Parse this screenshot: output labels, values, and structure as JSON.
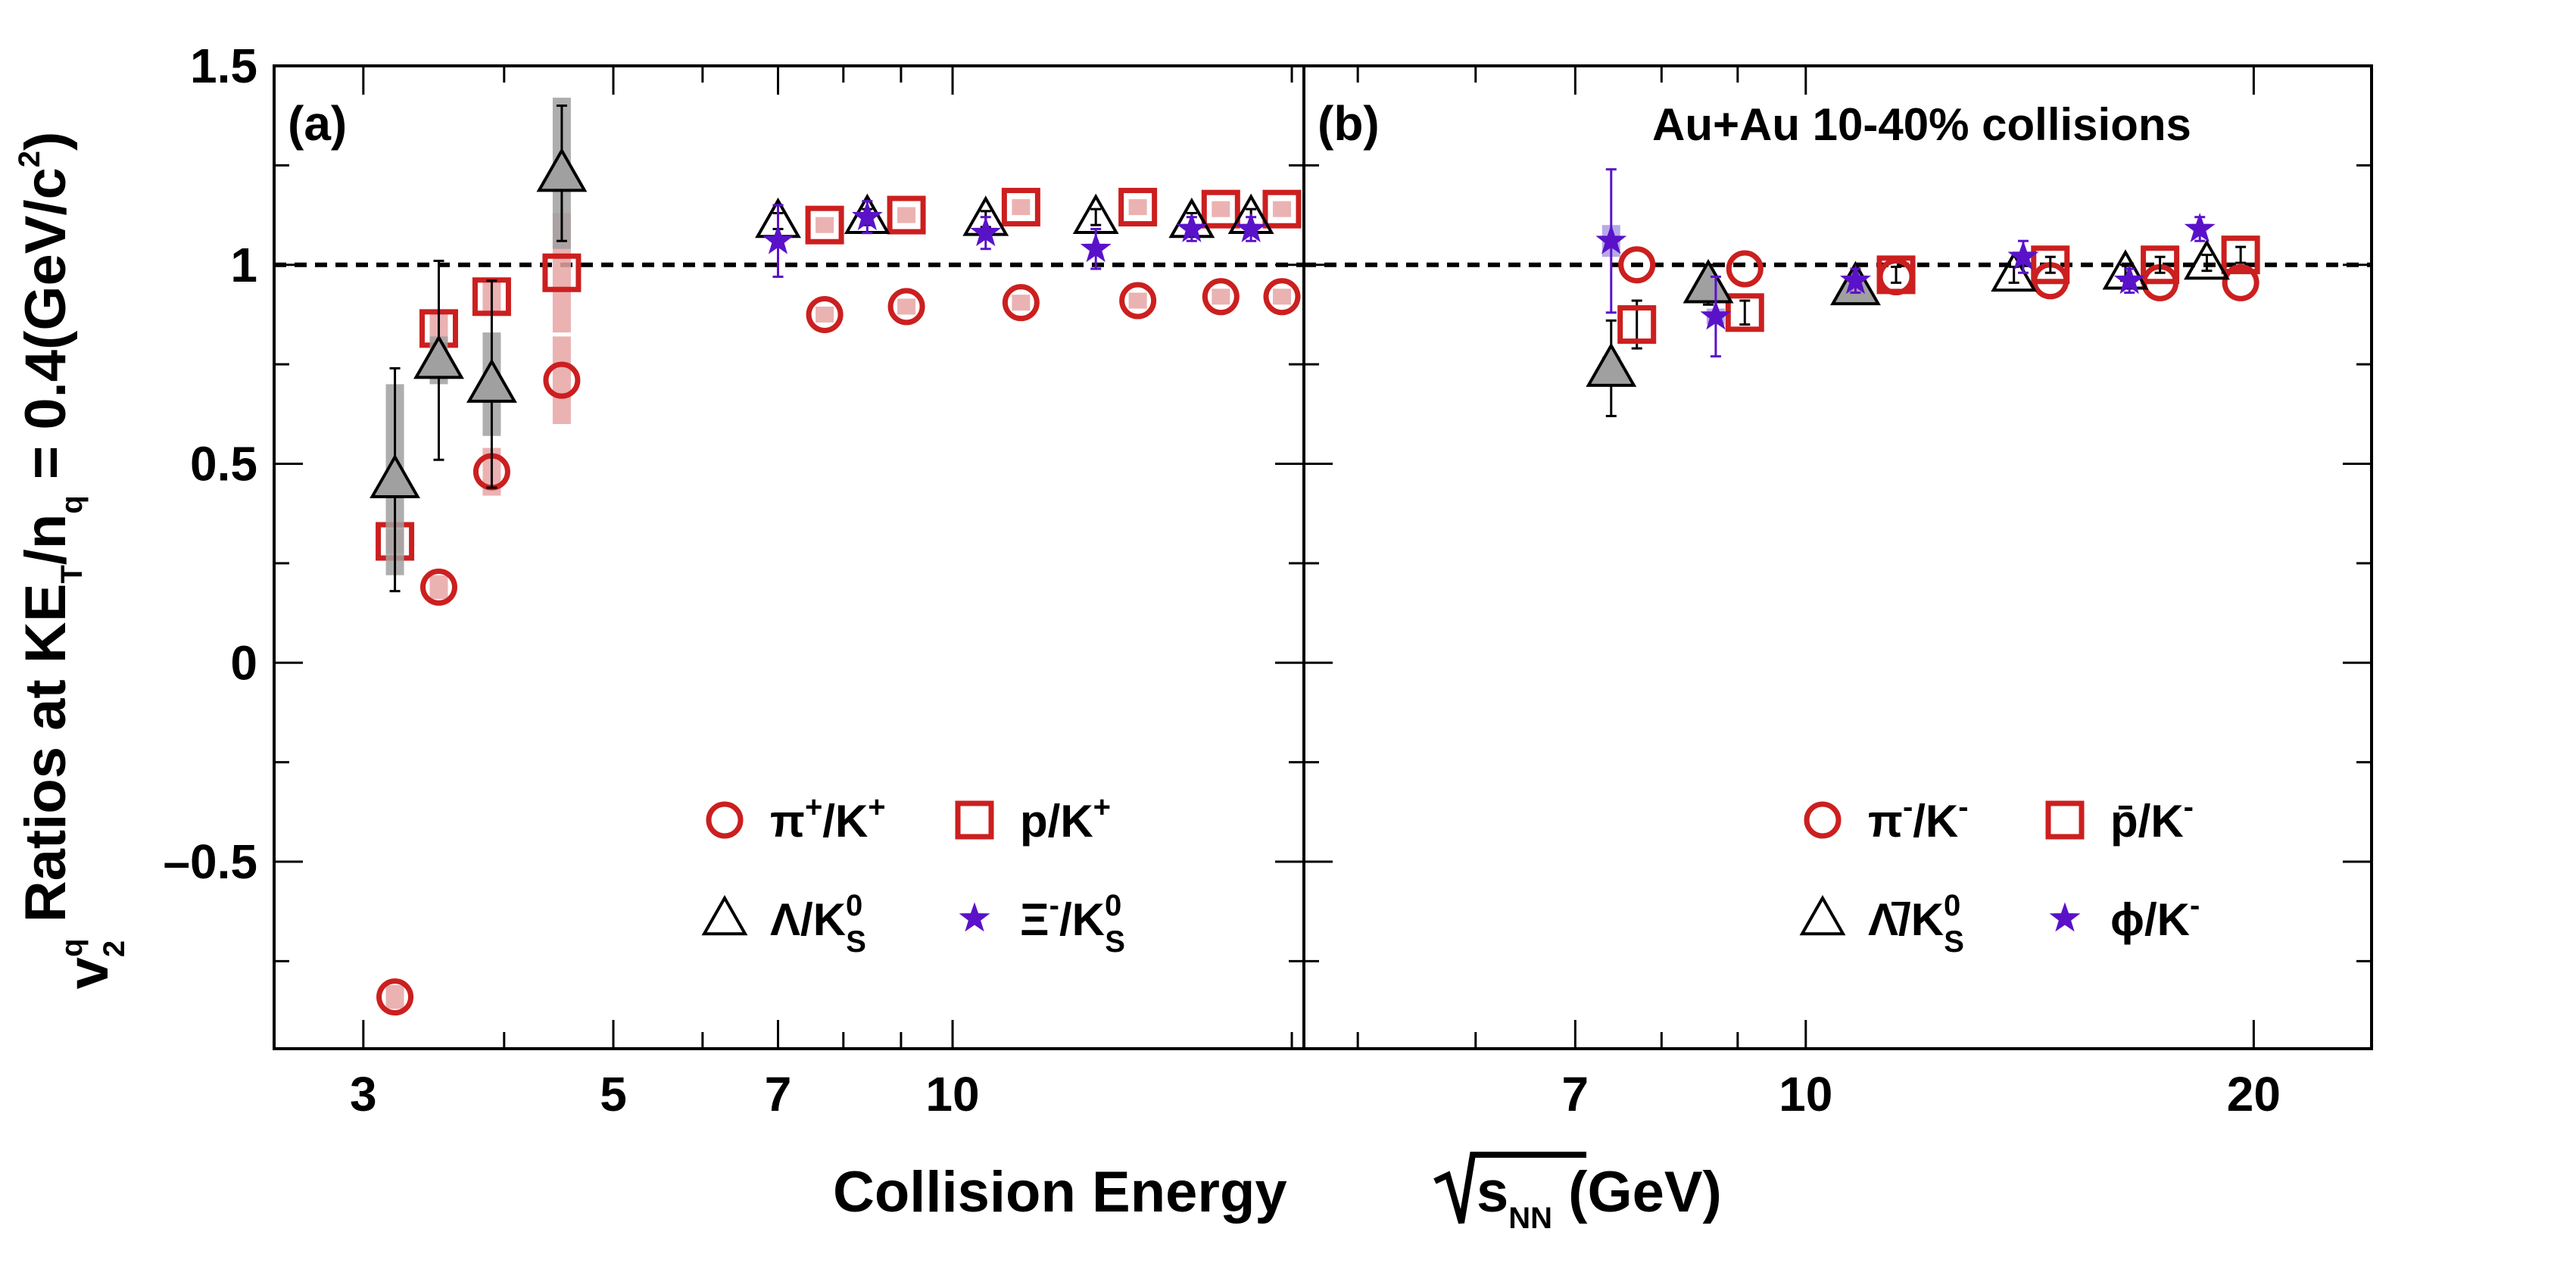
{
  "chart_data": {
    "type": "scatter",
    "y_axis": {
      "label": "v2q Ratios at KET/nq = 0.4(GeV/c2)",
      "label_parts": [
        "v",
        "2",
        "q",
        " Ratios at KE",
        "T",
        "/n",
        "q",
        " = 0.4(GeV/c",
        "2",
        ")"
      ],
      "ylim": [
        -0.97,
        1.5
      ],
      "ticks": [
        -0.5,
        0,
        0.5,
        1,
        1.5
      ],
      "tick_labels": [
        "–0.5",
        "0",
        "0.5",
        "1",
        "1.5"
      ]
    },
    "x_axis": {
      "label": "Collision Energy √sNN (GeV)",
      "label_parts": [
        "Collision Energy ",
        "s",
        "NN",
        " (GeV)"
      ],
      "scale": "log"
    },
    "reference_line": 1,
    "panels": [
      {
        "id": "a",
        "label": "(a)",
        "xlim": [
          2.5,
          20.5
        ],
        "xticks": [
          3,
          5,
          7,
          10
        ],
        "minor_xticks": [
          4,
          6,
          8,
          9,
          20
        ],
        "annotation": "",
        "legend": [
          {
            "symbol": "circle",
            "parts": [
              "π",
              "+",
              "/K",
              "+"
            ]
          },
          {
            "symbol": "square",
            "parts": [
              "p/K",
              "+"
            ]
          },
          {
            "symbol": "triangle",
            "parts": [
              "Λ/K",
              "0",
              "S"
            ]
          },
          {
            "symbol": "star",
            "parts": [
              "Ξ",
              "-",
              "/K",
              "0",
              "S"
            ]
          }
        ],
        "series": [
          {
            "name": "π+/K+",
            "symbol": "circle",
            "color": "#cc1f1f",
            "points": [
              {
                "x": 3.2,
                "y": -0.84,
                "syst": 0.03
              },
              {
                "x": 3.5,
                "y": 0.19,
                "syst": 0.03
              },
              {
                "x": 3.9,
                "y": 0.48,
                "syst": 0.06
              },
              {
                "x": 4.5,
                "y": 0.71,
                "syst": 0.11
              },
              {
                "x": 7.7,
                "y": 0.875,
                "syst": 0.02
              },
              {
                "x": 9.1,
                "y": 0.895,
                "syst": 0.02
              },
              {
                "x": 11.5,
                "y": 0.905,
                "syst": 0.02
              },
              {
                "x": 14.6,
                "y": 0.91,
                "syst": 0.02
              },
              {
                "x": 17.3,
                "y": 0.92,
                "syst": 0.02
              },
              {
                "x": 19.6,
                "y": 0.92,
                "syst": 0.02
              }
            ]
          },
          {
            "name": "p/K+",
            "symbol": "square",
            "color": "#cc1f1f",
            "points": [
              {
                "x": 3.2,
                "y": 0.305,
                "syst": 0.03
              },
              {
                "x": 3.5,
                "y": 0.84,
                "syst": 0.04
              },
              {
                "x": 3.9,
                "y": 0.92,
                "syst": 0.04
              },
              {
                "x": 4.5,
                "y": 0.98,
                "syst": 0.15
              },
              {
                "x": 7.7,
                "y": 1.1,
                "syst": 0.02
              },
              {
                "x": 9.1,
                "y": 1.125,
                "syst": 0.02
              },
              {
                "x": 11.5,
                "y": 1.145,
                "syst": 0.02
              },
              {
                "x": 14.6,
                "y": 1.145,
                "syst": 0.02
              },
              {
                "x": 17.3,
                "y": 1.14,
                "syst": 0.02
              },
              {
                "x": 19.6,
                "y": 1.14,
                "syst": 0.02
              }
            ]
          },
          {
            "name": "Λ/K0S",
            "symbol": "triangle",
            "color": "#000000",
            "points": [
              {
                "x": 3.2,
                "y": 0.46,
                "err": 0.28,
                "syst": 0.24
              },
              {
                "x": 3.5,
                "y": 0.76,
                "err": 0.25,
                "syst": 0.06
              },
              {
                "x": 3.9,
                "y": 0.7,
                "err": 0.26,
                "syst": 0.13
              },
              {
                "x": 4.5,
                "y": 1.23,
                "err": 0.17,
                "syst": 0.19
              },
              {
                "x": 7.0,
                "y": 1.11,
                "err": 0.02
              },
              {
                "x": 8.4,
                "y": 1.12,
                "err": 0.02
              },
              {
                "x": 10.7,
                "y": 1.115,
                "err": 0.02
              },
              {
                "x": 13.4,
                "y": 1.12,
                "err": 0.02
              },
              {
                "x": 16.3,
                "y": 1.11,
                "err": 0.02
              },
              {
                "x": 18.4,
                "y": 1.12,
                "err": 0.02
              }
            ]
          },
          {
            "name": "Ξ-/K0S",
            "symbol": "star",
            "color": "#5a12c9",
            "points": [
              {
                "x": 7.0,
                "y": 1.06,
                "err": 0.09
              },
              {
                "x": 8.4,
                "y": 1.12,
                "err": 0.04
              },
              {
                "x": 10.7,
                "y": 1.08,
                "err": 0.04
              },
              {
                "x": 13.4,
                "y": 1.04,
                "err": 0.05
              },
              {
                "x": 16.3,
                "y": 1.09,
                "err": 0.03
              },
              {
                "x": 18.4,
                "y": 1.09,
                "err": 0.03
              }
            ]
          }
        ]
      },
      {
        "id": "b",
        "label": "(b)",
        "xlim": [
          4.6,
          24
        ],
        "xticks": [
          7,
          10,
          20
        ],
        "minor_xticks": [
          5,
          6,
          8,
          9
        ],
        "annotation": "Au+Au 10-40% collisions",
        "legend": [
          {
            "symbol": "circle",
            "parts": [
              "π",
              "-",
              "/K",
              "-"
            ]
          },
          {
            "symbol": "square",
            "parts": [
              "p̄/K",
              "-"
            ]
          },
          {
            "symbol": "triangle",
            "parts": [
              "Λ̄/K",
              "0",
              "S"
            ]
          },
          {
            "symbol": "star",
            "parts": [
              "ϕ/K",
              "-"
            ]
          }
        ],
        "series": [
          {
            "name": "π-/K-",
            "symbol": "circle",
            "color": "#cc1f1f",
            "points": [
              {
                "x": 7.7,
                "y": 1.0
              },
              {
                "x": 9.1,
                "y": 0.99
              },
              {
                "x": 11.5,
                "y": 0.97
              },
              {
                "x": 14.6,
                "y": 0.96
              },
              {
                "x": 17.3,
                "y": 0.955
              },
              {
                "x": 19.6,
                "y": 0.955
              }
            ]
          },
          {
            "name": "p̄/K-",
            "symbol": "square",
            "color": "#cc1f1f",
            "points": [
              {
                "x": 7.7,
                "y": 0.85,
                "err": 0.06
              },
              {
                "x": 9.1,
                "y": 0.88,
                "err": 0.03
              },
              {
                "x": 11.5,
                "y": 0.975,
                "err": 0.02
              },
              {
                "x": 14.6,
                "y": 1.0,
                "err": 0.02
              },
              {
                "x": 17.3,
                "y": 1.0,
                "err": 0.02
              },
              {
                "x": 19.6,
                "y": 1.025,
                "err": 0.02
              }
            ]
          },
          {
            "name": "Λ̄/K0S",
            "symbol": "triangle",
            "color": "#000000",
            "points": [
              {
                "x": 7.4,
                "y": 0.74,
                "err": 0.12,
                "syst": 0.03
              },
              {
                "x": 8.6,
                "y": 0.95,
                "err": 0.05
              },
              {
                "x": 10.8,
                "y": 0.945,
                "err": 0.02
              },
              {
                "x": 13.8,
                "y": 0.975,
                "err": 0.02
              },
              {
                "x": 16.4,
                "y": 0.98,
                "err": 0.02
              },
              {
                "x": 18.6,
                "y": 1.005,
                "err": 0.02
              }
            ]
          },
          {
            "name": "ϕ/K-",
            "symbol": "star",
            "color": "#5a12c9",
            "points": [
              {
                "x": 7.4,
                "y": 1.06,
                "err": 0.18,
                "syst": 0.04
              },
              {
                "x": 8.7,
                "y": 0.87,
                "err": 0.1,
                "syst": 0.02
              },
              {
                "x": 10.8,
                "y": 0.96,
                "err": 0.03
              },
              {
                "x": 14.0,
                "y": 1.02,
                "err": 0.04
              },
              {
                "x": 16.5,
                "y": 0.96,
                "err": 0.03
              },
              {
                "x": 18.4,
                "y": 1.09,
                "err": 0.03
              }
            ]
          }
        ]
      }
    ]
  },
  "colors": {
    "red": "#cc1f1f",
    "purple": "#5a12c9",
    "purple_band": "#a99be6",
    "gray_fill": "#a0a0a0",
    "red_band": "#e8a5a5",
    "black": "#000000"
  }
}
